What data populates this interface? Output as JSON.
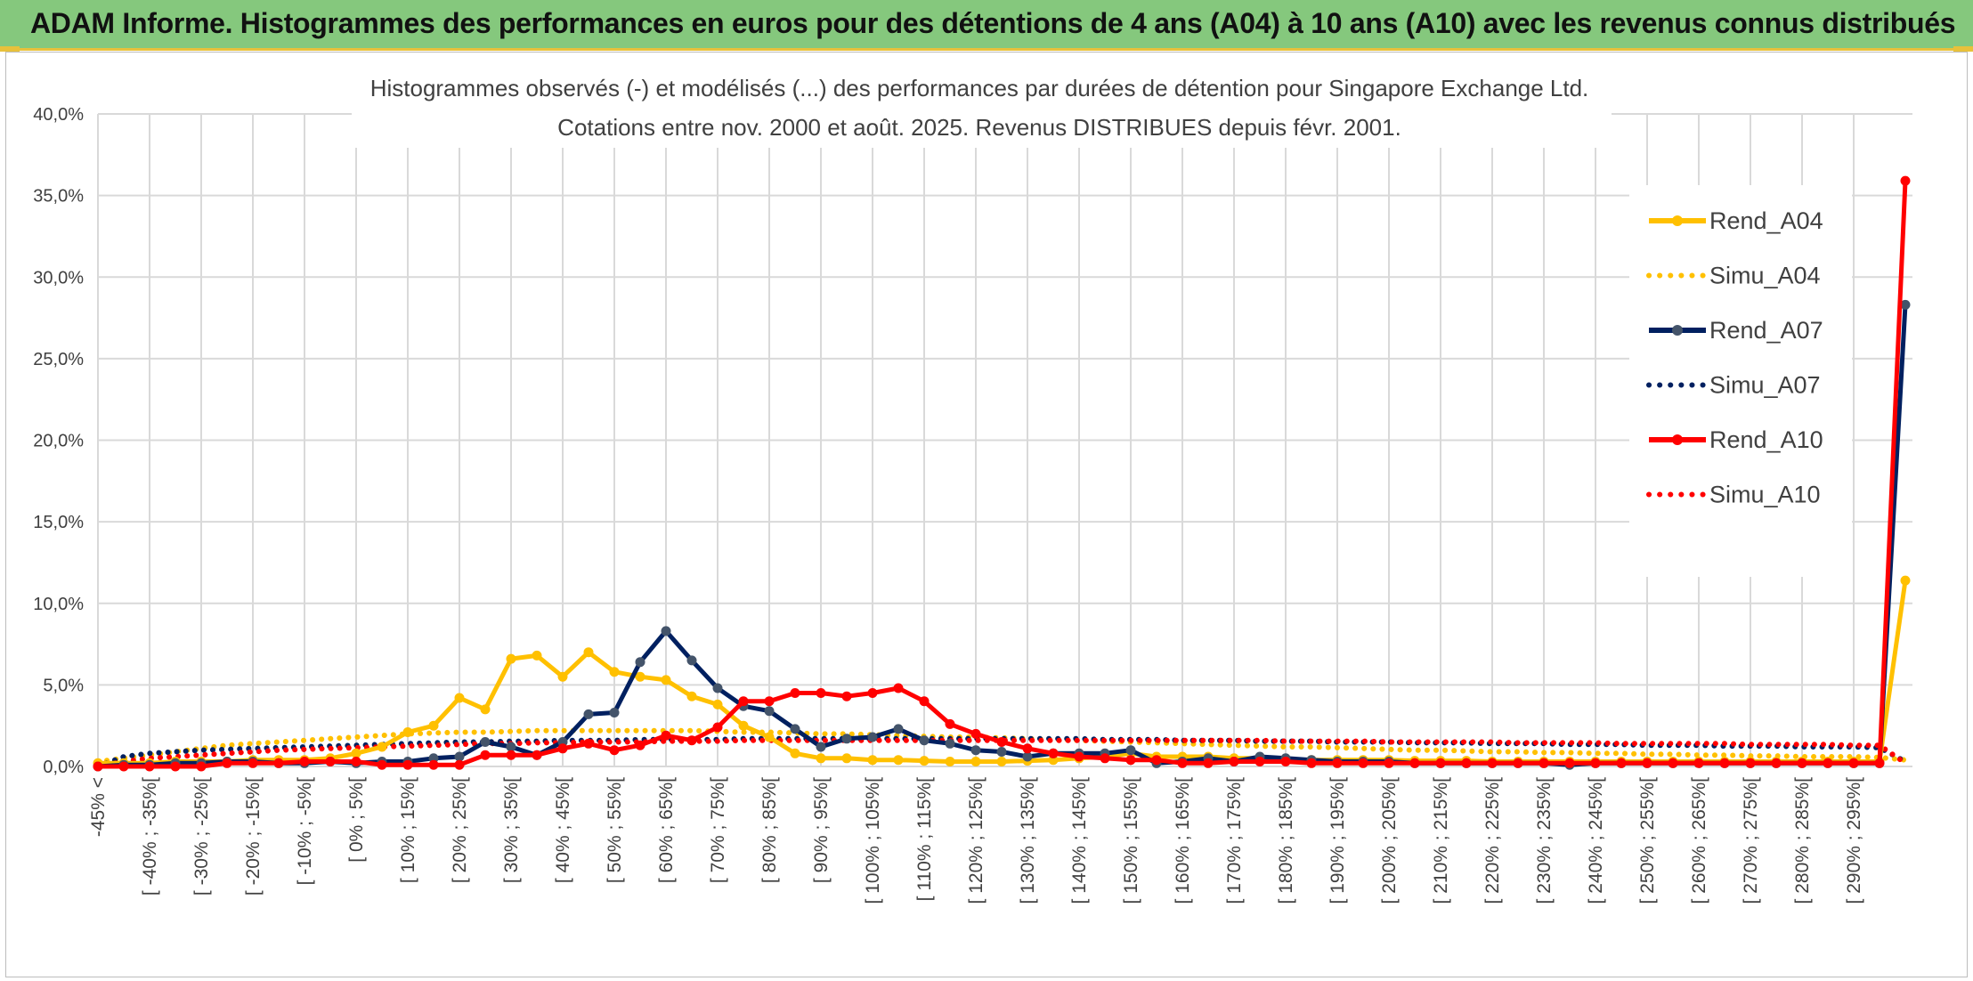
{
  "banner": {
    "title": "ADAM Informe. Histogrammes des performances en euros pour des détentions de 4 ans (A04) à 10 ans (A10) avec les revenus connus distribués"
  },
  "colors": {
    "banner_bg": "#85c87d",
    "banner_border": "#e8c13b",
    "a04": "#ffc000",
    "a07": "#002060",
    "a07_marker": "#44546a",
    "a10": "#ff0000",
    "grid": "#d9d9d9"
  },
  "chart_data": {
    "type": "line",
    "title_lines": [
      "Histogrammes observés (-) et modélisés (...) des performances par durées de détention pour Singapore Exchange Ltd.",
      "Cotations entre nov. 2000 et août. 2025. Revenus DISTRIBUES depuis févr. 2001."
    ],
    "y_ticks": [
      "0,0%",
      "5,0%",
      "10,0%",
      "15,0%",
      "20,0%",
      "25,0%",
      "30,0%",
      "35,0%",
      "40,0%"
    ],
    "ylim": [
      0,
      40
    ],
    "grid": true,
    "legend_position": "right",
    "category_labels": [
      "-45% <",
      "[ -40% ; -35%[",
      "[ -30% ; -25%[",
      "[ -20% ; -15%[",
      "[ -10% ; -5%[",
      "[ 0% ; 5%[",
      "[ 10% ; 15%[",
      "[ 20% ; 25%[",
      "[ 30% ; 35%[",
      "[ 40% ; 45%[",
      "[ 50% ; 55%[",
      "[ 60% ; 65%[",
      "[ 70% ; 75%[",
      "[ 80% ; 85%[",
      "[ 90% ; 95%[",
      "[ 100% ; 105%[",
      "[ 110% ; 115%[",
      "[ 120% ; 125%[",
      "[ 130% ; 135%[",
      "[ 140% ; 145%[",
      "[ 150% ; 155%[",
      "[ 160% ; 165%[",
      "[ 170% ; 175%[",
      "[ 180% ; 185%[",
      "[ 190% ; 195%[",
      "[ 200% ; 205%[",
      "[ 210% ; 215%[",
      "[ 220% ; 225%[",
      "[ 230% ; 235%[",
      "[ 240% ; 245%[",
      "[ 250% ; 255%[",
      "[ 260% ; 265%[",
      "[ 270% ; 275%[",
      "[ 280% ; 285%[",
      "[ 290% ; 295%["
    ],
    "series": [
      {
        "name": "Rend_A04",
        "style": "solid",
        "color": "#ffc000",
        "values": [
          0.2,
          0.2,
          0.2,
          0.3,
          0.3,
          0.3,
          0.4,
          0.4,
          0.4,
          0.5,
          0.8,
          1.2,
          2.1,
          2.5,
          4.2,
          3.5,
          6.6,
          6.8,
          5.5,
          7.0,
          5.8,
          5.5,
          5.3,
          4.3,
          3.8,
          2.5,
          1.8,
          0.8,
          0.5,
          0.5,
          0.4,
          0.4,
          0.35,
          0.3,
          0.3,
          0.3,
          0.35,
          0.4,
          0.5,
          0.6,
          0.8,
          0.6,
          0.6,
          0.6,
          0.5,
          0.5,
          0.4,
          0.4,
          0.4,
          0.4,
          0.4,
          0.35,
          0.35,
          0.35,
          0.3,
          0.3,
          0.3,
          0.3,
          0.3,
          0.3,
          0.3,
          0.3,
          0.3,
          0.3,
          0.3,
          0.3,
          0.3,
          0.3,
          0.3,
          0.3,
          11.4
        ]
      },
      {
        "name": "Simu_A04",
        "style": "dotted",
        "color": "#ffc000",
        "values": [
          0.3,
          0.5,
          0.7,
          0.9,
          1.1,
          1.3,
          1.4,
          1.5,
          1.6,
          1.7,
          1.8,
          1.9,
          2.0,
          2.05,
          2.1,
          2.1,
          2.15,
          2.2,
          2.2,
          2.2,
          2.2,
          2.2,
          2.2,
          2.2,
          2.15,
          2.1,
          2.1,
          2.05,
          2.0,
          2.0,
          1.95,
          1.9,
          1.85,
          1.8,
          1.8,
          1.75,
          1.7,
          1.65,
          1.6,
          1.55,
          1.5,
          1.45,
          1.4,
          1.35,
          1.3,
          1.25,
          1.2,
          1.2,
          1.15,
          1.1,
          1.05,
          1.0,
          1.0,
          0.95,
          0.9,
          0.9,
          0.85,
          0.85,
          0.8,
          0.8,
          0.75,
          0.75,
          0.7,
          0.7,
          0.65,
          0.65,
          0.6,
          0.6,
          0.6,
          0.55,
          0.4
        ]
      },
      {
        "name": "Rend_A07",
        "style": "solid",
        "color": "#002060",
        "values": [
          0.0,
          0.1,
          0.1,
          0.2,
          0.2,
          0.3,
          0.3,
          0.2,
          0.2,
          0.3,
          0.2,
          0.3,
          0.3,
          0.5,
          0.6,
          1.5,
          1.2,
          0.7,
          1.5,
          3.2,
          3.3,
          6.4,
          8.3,
          6.5,
          4.8,
          3.7,
          3.4,
          2.3,
          1.2,
          1.7,
          1.8,
          2.3,
          1.6,
          1.4,
          1.0,
          0.9,
          0.6,
          0.8,
          0.8,
          0.8,
          1.0,
          0.2,
          0.3,
          0.5,
          0.3,
          0.6,
          0.5,
          0.4,
          0.3,
          0.3,
          0.3,
          0.2,
          0.2,
          0.2,
          0.2,
          0.2,
          0.2,
          0.1,
          0.2,
          0.2,
          0.2,
          0.2,
          0.2,
          0.2,
          0.2,
          0.2,
          0.2,
          0.2,
          0.2,
          0.2,
          28.3
        ]
      },
      {
        "name": "Simu_A07",
        "style": "dotted",
        "color": "#002060",
        "values": [
          0.0,
          0.6,
          0.8,
          0.9,
          1.0,
          1.05,
          1.1,
          1.15,
          1.2,
          1.25,
          1.3,
          1.35,
          1.4,
          1.45,
          1.5,
          1.5,
          1.55,
          1.55,
          1.6,
          1.6,
          1.6,
          1.65,
          1.65,
          1.65,
          1.65,
          1.7,
          1.7,
          1.7,
          1.7,
          1.7,
          1.7,
          1.7,
          1.7,
          1.7,
          1.7,
          1.7,
          1.7,
          1.7,
          1.7,
          1.65,
          1.65,
          1.65,
          1.6,
          1.6,
          1.6,
          1.55,
          1.55,
          1.55,
          1.5,
          1.5,
          1.5,
          1.45,
          1.45,
          1.45,
          1.4,
          1.4,
          1.4,
          1.35,
          1.35,
          1.35,
          1.3,
          1.3,
          1.3,
          1.25,
          1.25,
          1.25,
          1.2,
          1.2,
          1.2,
          1.15,
          0.3
        ]
      },
      {
        "name": "Rend_A10",
        "style": "solid",
        "color": "#ff0000",
        "values": [
          0.0,
          0.0,
          0.0,
          0.0,
          0.0,
          0.2,
          0.2,
          0.2,
          0.3,
          0.3,
          0.3,
          0.1,
          0.1,
          0.1,
          0.1,
          0.7,
          0.7,
          0.7,
          1.1,
          1.4,
          1.0,
          1.3,
          1.9,
          1.6,
          2.4,
          4.0,
          4.0,
          4.5,
          4.5,
          4.3,
          4.5,
          4.8,
          4.0,
          2.6,
          2.0,
          1.5,
          1.1,
          0.8,
          0.6,
          0.5,
          0.4,
          0.4,
          0.2,
          0.2,
          0.3,
          0.3,
          0.3,
          0.2,
          0.2,
          0.2,
          0.2,
          0.2,
          0.2,
          0.2,
          0.2,
          0.2,
          0.2,
          0.2,
          0.2,
          0.2,
          0.2,
          0.2,
          0.2,
          0.2,
          0.2,
          0.2,
          0.2,
          0.2,
          0.2,
          0.2,
          35.9
        ]
      },
      {
        "name": "Simu_A10",
        "style": "dotted",
        "color": "#ff0000",
        "values": [
          0.0,
          0.3,
          0.5,
          0.6,
          0.7,
          0.8,
          0.9,
          1.0,
          1.05,
          1.1,
          1.15,
          1.2,
          1.25,
          1.3,
          1.35,
          1.4,
          1.4,
          1.45,
          1.45,
          1.5,
          1.5,
          1.5,
          1.55,
          1.55,
          1.55,
          1.6,
          1.6,
          1.6,
          1.6,
          1.6,
          1.6,
          1.6,
          1.6,
          1.6,
          1.6,
          1.6,
          1.6,
          1.6,
          1.6,
          1.6,
          1.6,
          1.6,
          1.6,
          1.6,
          1.6,
          1.6,
          1.55,
          1.55,
          1.55,
          1.55,
          1.5,
          1.5,
          1.5,
          1.5,
          1.5,
          1.45,
          1.45,
          1.45,
          1.45,
          1.4,
          1.4,
          1.4,
          1.4,
          1.4,
          1.35,
          1.35,
          1.35,
          1.35,
          1.3,
          1.3,
          0.2
        ]
      }
    ]
  }
}
